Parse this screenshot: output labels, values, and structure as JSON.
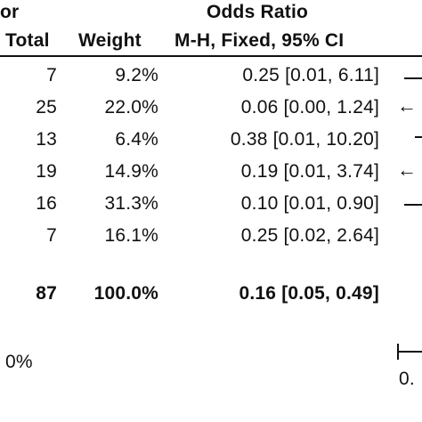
{
  "header": {
    "partial_left": "or",
    "odds_ratio_title": "Odds Ratio",
    "col_total": "Total",
    "col_weight": "Weight",
    "col_method": "M-H, Fixed, 95% CI"
  },
  "rows": [
    {
      "total": "7",
      "weight": "9.2%",
      "ci": "0.25 [0.01, 6.11]"
    },
    {
      "total": "25",
      "weight": "22.0%",
      "ci": "0.06 [0.00, 1.24]"
    },
    {
      "total": "13",
      "weight": "6.4%",
      "ci": "0.38 [0.01, 10.20]"
    },
    {
      "total": "19",
      "weight": "14.9%",
      "ci": "0.19 [0.01, 3.74]"
    },
    {
      "total": "16",
      "weight": "31.3%",
      "ci": "0.10 [0.01, 0.90]"
    },
    {
      "total": "7",
      "weight": "16.1%",
      "ci": "0.25 [0.02, 2.64]"
    }
  ],
  "summary": {
    "total": "87",
    "weight": "100.0%",
    "ci": "0.16 [0.05, 0.49]"
  },
  "heterogeneity_partial": "0%",
  "axis_partial_label": "0."
}
